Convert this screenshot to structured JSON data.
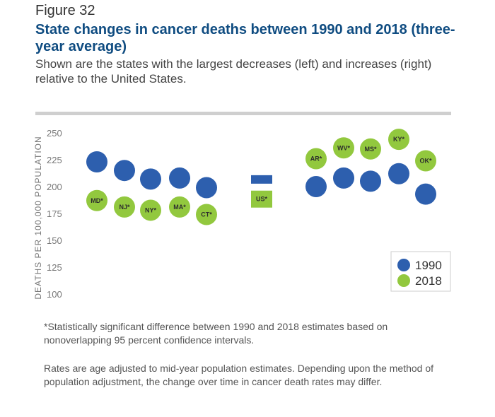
{
  "figure": {
    "label": "Figure 32",
    "title": "State changes in cancer deaths between 1990 and 2018 (three-year average)",
    "subtitle": "Shown are the states with the largest decreases (left) and increases (right) relative to the United States."
  },
  "colors": {
    "series_1990": "#2d5fae",
    "series_2018": "#92c83e",
    "rule": "#cfcfcf",
    "title": "#0f4c81"
  },
  "chart_data": {
    "type": "scatter",
    "ylabel": "DEATHS PER 100,000 POPULATION",
    "ylim": [
      100,
      250
    ],
    "yticks": [
      250,
      225,
      200,
      175,
      150,
      125,
      100
    ],
    "legend_position": "bottom-right",
    "categories": [
      "MD*",
      "NJ*",
      "NY*",
      "MA*",
      "CT*",
      "US*",
      "AR*",
      "WV*",
      "MS*",
      "KY*",
      "OK*"
    ],
    "series": [
      {
        "name": "1990",
        "values": [
          223,
          215,
          207,
          208,
          199,
          206,
          200,
          208,
          205,
          212,
          193
        ]
      },
      {
        "name": "2018",
        "values": [
          187,
          181,
          178,
          181,
          174,
          189,
          226,
          236,
          235,
          244,
          224
        ]
      }
    ]
  },
  "notes": {
    "significance": "*Statistically significant difference between 1990 and 2018 estimates based on nonoverlapping 95 percent confidence intervals.",
    "adjustment": "Rates are age adjusted to mid-year population estimates. Depending upon the method of population adjustment, the change over time in cancer death rates may differ."
  }
}
